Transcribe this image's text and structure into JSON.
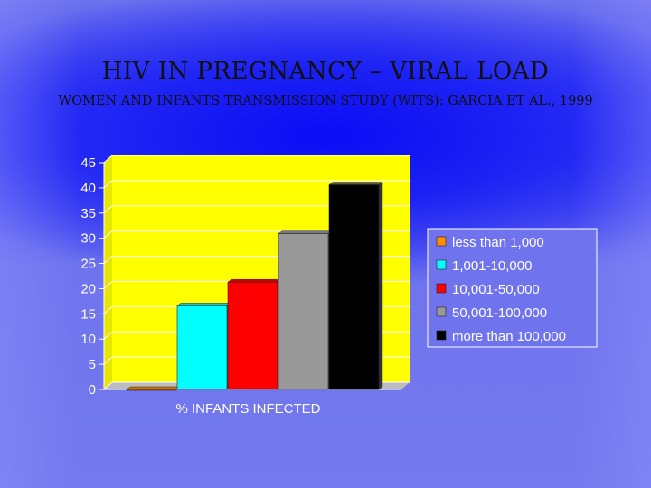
{
  "slide": {
    "title": "HIV IN PREGNANCY – VIRAL LOAD",
    "subtitle": "WOMEN AND INFANTS TRANSMISSION STUDY (WITS): GARCIA ET AL., 1999"
  },
  "chart_data": {
    "type": "bar",
    "categories": [
      "% INFANTS INFECTED"
    ],
    "series": [
      {
        "name": "less than 1,000",
        "values": [
          0
        ],
        "color": "#ff8c00"
      },
      {
        "name": "1,001-10,000",
        "values": [
          16.6
        ],
        "color": "#00ffff"
      },
      {
        "name": "10,001-50,000",
        "values": [
          21.3
        ],
        "color": "#ff0000"
      },
      {
        "name": "50,001-100,000",
        "values": [
          30.9
        ],
        "color": "#999999"
      },
      {
        "name": "more than 100,000",
        "values": [
          40.6
        ],
        "color": "#000000"
      }
    ],
    "yticks": [
      "0",
      "5",
      "10",
      "15",
      "20",
      "25",
      "30",
      "35",
      "40",
      "45"
    ],
    "ylim": [
      0,
      45
    ],
    "grid": true,
    "legend": "right",
    "plot_background": "#ffff00",
    "gridline_color": "#ffffff"
  }
}
